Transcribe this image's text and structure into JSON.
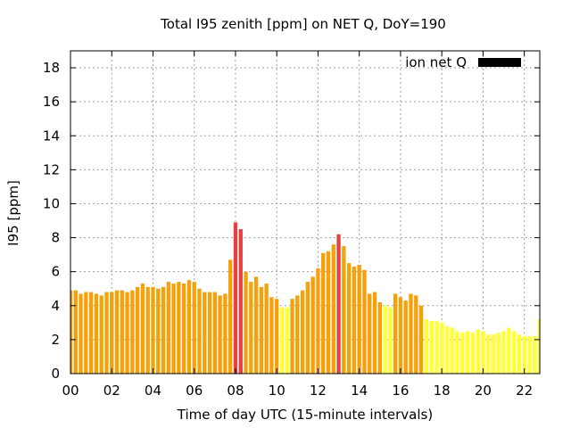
{
  "chart_data": {
    "type": "bar",
    "title": "Total I95 zenith [ppm] on NET Q, DoY=190",
    "xlabel": "Time of day UTC (15-minute intervals)",
    "ylabel": "I95 [ppm]",
    "ylim": [
      0,
      19
    ],
    "xlim_hours": [
      0,
      22.75
    ],
    "interval_hours": 0.25,
    "yticks": [
      "0",
      "2",
      "4",
      "6",
      "8",
      "10",
      "12",
      "14",
      "16",
      "18"
    ],
    "xticks": [
      "00",
      "02",
      "04",
      "06",
      "08",
      "10",
      "12",
      "14",
      "16",
      "18",
      "20",
      "22"
    ],
    "grid": true,
    "legend": {
      "label": "ion net Q",
      "position": "top-right",
      "color": "#000000"
    },
    "bar_colors": {
      "red": "#e84040",
      "orange": "#f5a10a",
      "yellow": "#ffff33"
    },
    "bars": [
      {
        "h": 0.0,
        "v": 4.9,
        "c": "orange"
      },
      {
        "h": 0.25,
        "v": 4.9,
        "c": "orange"
      },
      {
        "h": 0.5,
        "v": 4.7,
        "c": "orange"
      },
      {
        "h": 0.75,
        "v": 4.8,
        "c": "orange"
      },
      {
        "h": 1.0,
        "v": 4.8,
        "c": "orange"
      },
      {
        "h": 1.25,
        "v": 4.7,
        "c": "orange"
      },
      {
        "h": 1.5,
        "v": 4.6,
        "c": "orange"
      },
      {
        "h": 1.75,
        "v": 4.8,
        "c": "orange"
      },
      {
        "h": 2.0,
        "v": 4.8,
        "c": "orange"
      },
      {
        "h": 2.25,
        "v": 4.9,
        "c": "orange"
      },
      {
        "h": 2.5,
        "v": 4.9,
        "c": "orange"
      },
      {
        "h": 2.75,
        "v": 4.8,
        "c": "orange"
      },
      {
        "h": 3.0,
        "v": 4.9,
        "c": "orange"
      },
      {
        "h": 3.25,
        "v": 5.1,
        "c": "orange"
      },
      {
        "h": 3.5,
        "v": 5.3,
        "c": "orange"
      },
      {
        "h": 3.75,
        "v": 5.1,
        "c": "orange"
      },
      {
        "h": 4.0,
        "v": 5.1,
        "c": "orange"
      },
      {
        "h": 4.25,
        "v": 5.0,
        "c": "orange"
      },
      {
        "h": 4.5,
        "v": 5.1,
        "c": "orange"
      },
      {
        "h": 4.75,
        "v": 5.4,
        "c": "orange"
      },
      {
        "h": 5.0,
        "v": 5.3,
        "c": "orange"
      },
      {
        "h": 5.25,
        "v": 5.4,
        "c": "orange"
      },
      {
        "h": 5.5,
        "v": 5.3,
        "c": "orange"
      },
      {
        "h": 5.75,
        "v": 5.5,
        "c": "orange"
      },
      {
        "h": 6.0,
        "v": 5.4,
        "c": "orange"
      },
      {
        "h": 6.25,
        "v": 5.0,
        "c": "orange"
      },
      {
        "h": 6.5,
        "v": 4.8,
        "c": "orange"
      },
      {
        "h": 6.75,
        "v": 4.8,
        "c": "orange"
      },
      {
        "h": 7.0,
        "v": 4.8,
        "c": "orange"
      },
      {
        "h": 7.25,
        "v": 4.6,
        "c": "orange"
      },
      {
        "h": 7.5,
        "v": 4.7,
        "c": "orange"
      },
      {
        "h": 7.75,
        "v": 6.7,
        "c": "orange"
      },
      {
        "h": 8.0,
        "v": 8.9,
        "c": "red"
      },
      {
        "h": 8.25,
        "v": 8.5,
        "c": "red"
      },
      {
        "h": 8.5,
        "v": 6.0,
        "c": "orange"
      },
      {
        "h": 8.75,
        "v": 5.4,
        "c": "orange"
      },
      {
        "h": 9.0,
        "v": 5.7,
        "c": "orange"
      },
      {
        "h": 9.25,
        "v": 5.1,
        "c": "orange"
      },
      {
        "h": 9.5,
        "v": 5.3,
        "c": "orange"
      },
      {
        "h": 9.75,
        "v": 4.5,
        "c": "orange"
      },
      {
        "h": 10.0,
        "v": 4.4,
        "c": "orange"
      },
      {
        "h": 10.25,
        "v": 3.9,
        "c": "yellow"
      },
      {
        "h": 10.5,
        "v": 3.9,
        "c": "yellow"
      },
      {
        "h": 10.75,
        "v": 4.4,
        "c": "orange"
      },
      {
        "h": 11.0,
        "v": 4.6,
        "c": "orange"
      },
      {
        "h": 11.25,
        "v": 4.9,
        "c": "orange"
      },
      {
        "h": 11.5,
        "v": 5.4,
        "c": "orange"
      },
      {
        "h": 11.75,
        "v": 5.7,
        "c": "orange"
      },
      {
        "h": 12.0,
        "v": 6.2,
        "c": "orange"
      },
      {
        "h": 12.25,
        "v": 7.1,
        "c": "orange"
      },
      {
        "h": 12.5,
        "v": 7.2,
        "c": "orange"
      },
      {
        "h": 12.75,
        "v": 7.6,
        "c": "orange"
      },
      {
        "h": 13.0,
        "v": 8.2,
        "c": "red"
      },
      {
        "h": 13.25,
        "v": 7.5,
        "c": "orange"
      },
      {
        "h": 13.5,
        "v": 6.5,
        "c": "orange"
      },
      {
        "h": 13.75,
        "v": 6.3,
        "c": "orange"
      },
      {
        "h": 14.0,
        "v": 6.4,
        "c": "orange"
      },
      {
        "h": 14.25,
        "v": 6.1,
        "c": "orange"
      },
      {
        "h": 14.5,
        "v": 4.7,
        "c": "orange"
      },
      {
        "h": 14.75,
        "v": 4.8,
        "c": "orange"
      },
      {
        "h": 15.0,
        "v": 4.2,
        "c": "orange"
      },
      {
        "h": 15.25,
        "v": 4.0,
        "c": "yellow"
      },
      {
        "h": 15.5,
        "v": 3.9,
        "c": "yellow"
      },
      {
        "h": 15.75,
        "v": 4.7,
        "c": "orange"
      },
      {
        "h": 16.0,
        "v": 4.5,
        "c": "orange"
      },
      {
        "h": 16.25,
        "v": 4.3,
        "c": "orange"
      },
      {
        "h": 16.5,
        "v": 4.7,
        "c": "orange"
      },
      {
        "h": 16.75,
        "v": 4.6,
        "c": "orange"
      },
      {
        "h": 17.0,
        "v": 4.0,
        "c": "orange"
      },
      {
        "h": 17.25,
        "v": 3.2,
        "c": "yellow"
      },
      {
        "h": 17.5,
        "v": 3.1,
        "c": "yellow"
      },
      {
        "h": 17.75,
        "v": 3.1,
        "c": "yellow"
      },
      {
        "h": 18.0,
        "v": 3.0,
        "c": "yellow"
      },
      {
        "h": 18.25,
        "v": 2.8,
        "c": "yellow"
      },
      {
        "h": 18.5,
        "v": 2.7,
        "c": "yellow"
      },
      {
        "h": 18.75,
        "v": 2.5,
        "c": "yellow"
      },
      {
        "h": 19.0,
        "v": 2.4,
        "c": "yellow"
      },
      {
        "h": 19.25,
        "v": 2.5,
        "c": "yellow"
      },
      {
        "h": 19.5,
        "v": 2.4,
        "c": "yellow"
      },
      {
        "h": 19.75,
        "v": 2.6,
        "c": "yellow"
      },
      {
        "h": 20.0,
        "v": 2.5,
        "c": "yellow"
      },
      {
        "h": 20.25,
        "v": 2.3,
        "c": "yellow"
      },
      {
        "h": 20.5,
        "v": 2.3,
        "c": "yellow"
      },
      {
        "h": 20.75,
        "v": 2.4,
        "c": "yellow"
      },
      {
        "h": 21.0,
        "v": 2.5,
        "c": "yellow"
      },
      {
        "h": 21.25,
        "v": 2.7,
        "c": "yellow"
      },
      {
        "h": 21.5,
        "v": 2.5,
        "c": "yellow"
      },
      {
        "h": 21.75,
        "v": 2.3,
        "c": "yellow"
      },
      {
        "h": 22.0,
        "v": 2.2,
        "c": "yellow"
      },
      {
        "h": 22.25,
        "v": 2.2,
        "c": "yellow"
      },
      {
        "h": 22.5,
        "v": 2.2,
        "c": "yellow"
      },
      {
        "h": 22.75,
        "v": 3.2,
        "c": "yellow"
      }
    ]
  }
}
